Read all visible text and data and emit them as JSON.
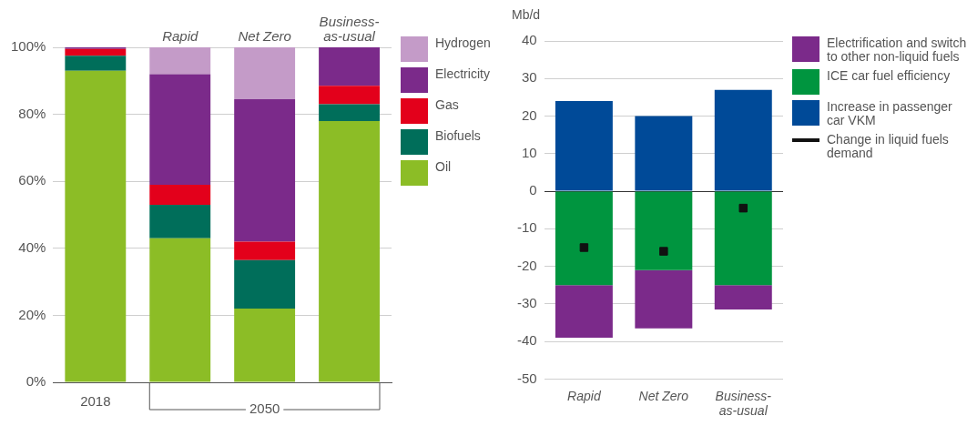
{
  "chart_data": [
    {
      "type": "bar",
      "stacked": true,
      "categories": [
        "2018",
        "Rapid",
        "Net Zero",
        "Business-as-usual"
      ],
      "series": [
        {
          "name": "Oil",
          "color": "#8cbd26",
          "values": [
            93,
            43,
            22,
            78
          ]
        },
        {
          "name": "Biofuels",
          "color": "#006e5a",
          "values": [
            4.5,
            10,
            14.5,
            5
          ]
        },
        {
          "name": "Gas",
          "color": "#e3001b",
          "values": [
            2,
            6,
            5.5,
            5.5
          ]
        },
        {
          "name": "Electricity",
          "color": "#7b2a8a",
          "values": [
            0.5,
            33,
            42.5,
            11.5
          ]
        },
        {
          "name": "Hydrogen",
          "color": "#c49bc8",
          "values": [
            0,
            8,
            15.5,
            0
          ]
        }
      ],
      "ylim": [
        0,
        100
      ],
      "yticks": [
        {
          "value": 0,
          "label": "0%"
        },
        {
          "value": 20,
          "label": "20%"
        },
        {
          "value": 40,
          "label": "40%"
        },
        {
          "value": 60,
          "label": "60%"
        },
        {
          "value": 80,
          "label": "80%"
        },
        {
          "value": 100,
          "label": "100%"
        }
      ],
      "grid": "y",
      "legend": "right",
      "annotations": [
        {
          "text": "2050"
        }
      ]
    },
    {
      "type": "bar",
      "stacked": true,
      "categories": [
        "Rapid",
        "Net Zero",
        "Business-as-usual"
      ],
      "ylabel": "Mb/d",
      "series": [
        {
          "name": "Increase in passenger car VKM",
          "color": "#004a98",
          "values": [
            24,
            20,
            27
          ]
        },
        {
          "name": "ICE car fuel efficiency",
          "color": "#00953f",
          "values": [
            -25,
            -21,
            -25
          ]
        },
        {
          "name": "Electrification and switch to other non-liquid fuels",
          "color": "#7b2a8a",
          "values": [
            -14,
            -15.5,
            -6.5
          ]
        },
        {
          "name": "Change in liquid fuels demand",
          "type": "scatter",
          "marker": "square",
          "color": "#111111",
          "values": [
            -15,
            -16,
            -4.5
          ]
        }
      ],
      "ylim": [
        -50,
        40
      ],
      "yticks": [
        -50,
        -40,
        -30,
        -20,
        -10,
        0,
        10,
        20,
        30,
        40
      ],
      "grid": "y",
      "legend": "right"
    }
  ]
}
